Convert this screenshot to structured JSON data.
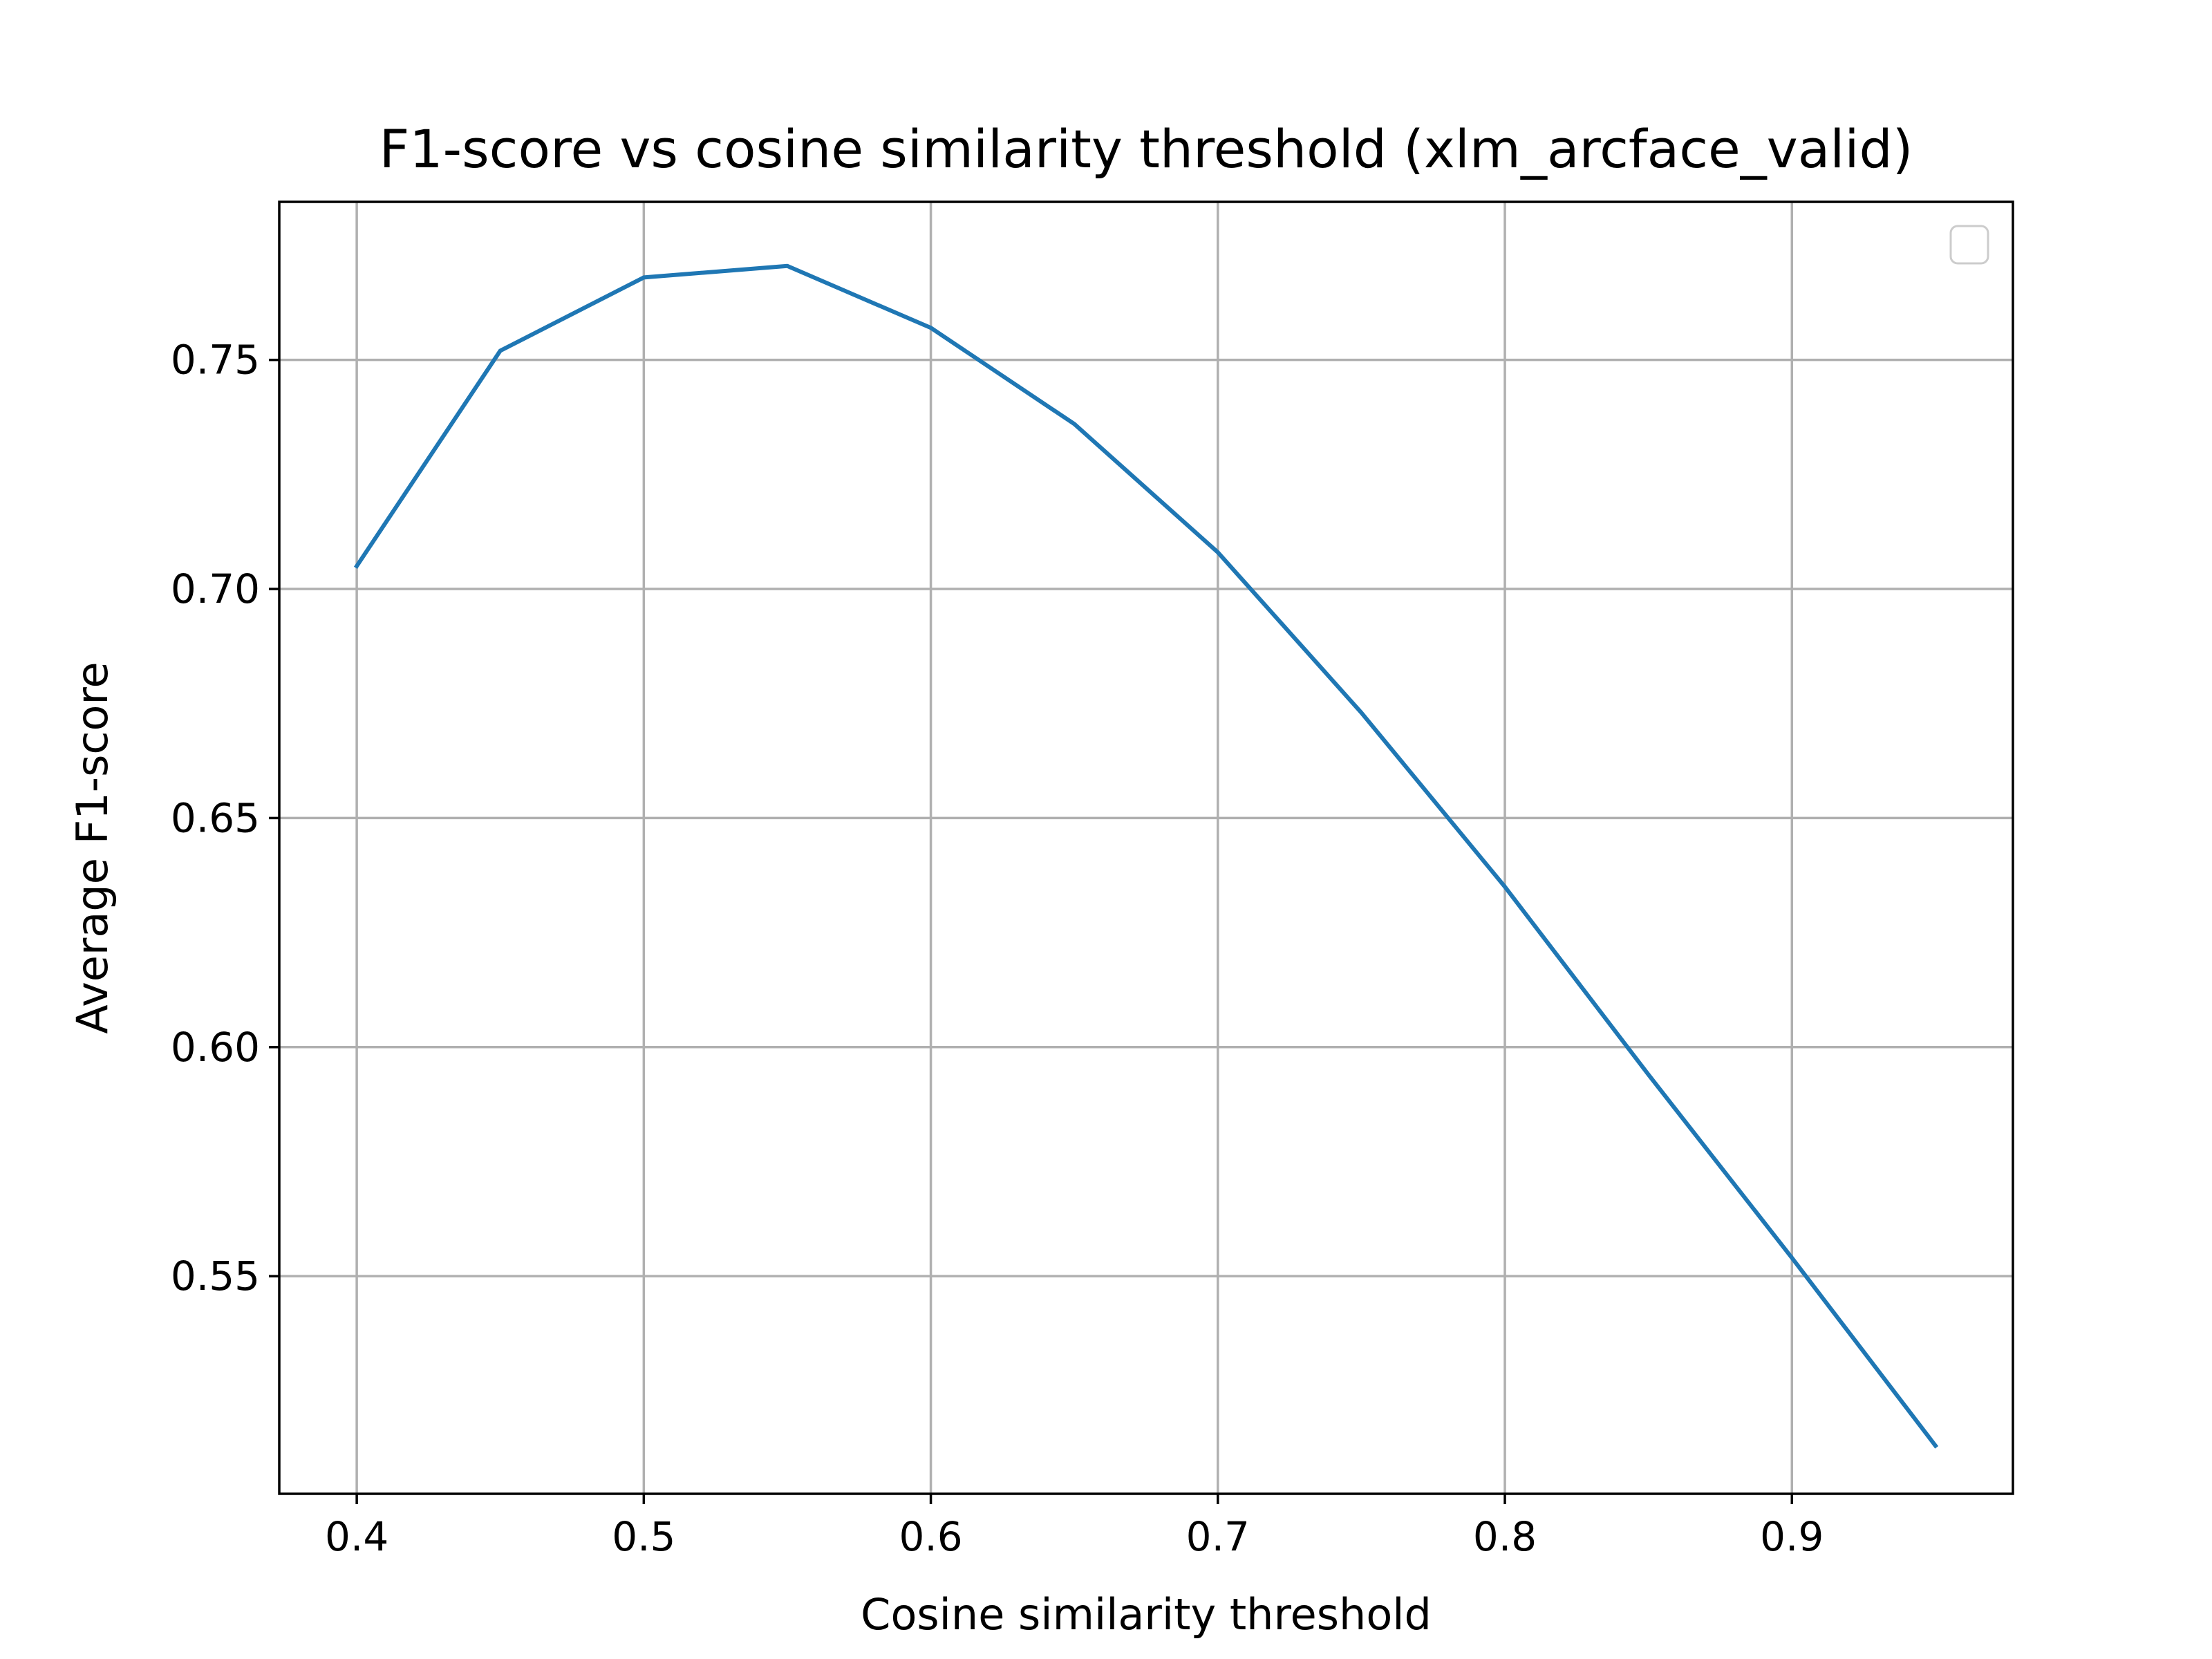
{
  "chart_data": {
    "type": "line",
    "title": "F1-score vs cosine similarity threshold (xlm_arcface_valid)",
    "xlabel": "Cosine similarity threshold",
    "ylabel": "Average F1-score",
    "xlim": [
      0.373,
      0.977
    ],
    "ylim": [
      0.5025,
      0.7845
    ],
    "xticks": [
      0.4,
      0.5,
      0.6,
      0.7,
      0.8,
      0.9
    ],
    "xtick_labels": [
      "0.4",
      "0.5",
      "0.6",
      "0.7",
      "0.8",
      "0.9"
    ],
    "yticks": [
      0.55,
      0.6,
      0.65,
      0.7,
      0.75
    ],
    "ytick_labels": [
      "0.55",
      "0.60",
      "0.65",
      "0.70",
      "0.75"
    ],
    "grid": true,
    "legend": {
      "placement": "top-right",
      "entries": []
    },
    "series": [
      {
        "color": "#1f77b4",
        "x": [
          0.4,
          0.45,
          0.5,
          0.55,
          0.6,
          0.65,
          0.7,
          0.75,
          0.8,
          0.85,
          0.9,
          0.95
        ],
        "y": [
          0.705,
          0.752,
          0.768,
          0.7705,
          0.757,
          0.736,
          0.708,
          0.673,
          0.635,
          0.594,
          0.554,
          0.513
        ]
      }
    ]
  }
}
